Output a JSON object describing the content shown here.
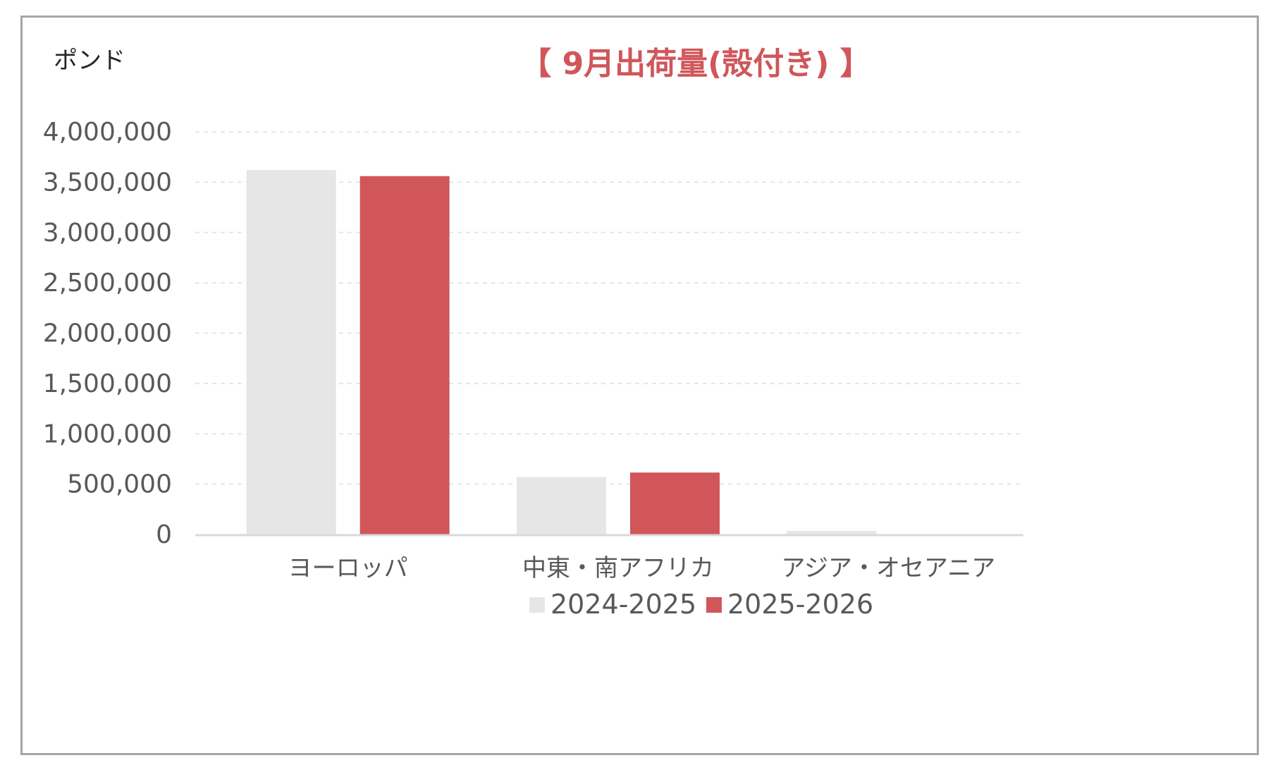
{
  "chart_data": {
    "type": "bar",
    "title": "【 9月出荷量(殻付き) 】",
    "unit_label": "ポンド",
    "categories": [
      "ヨーロッパ",
      "中東・南アフリカ",
      "アジア・オセアニア"
    ],
    "series": [
      {
        "name": "2024-2025",
        "color": "#e6e6e6",
        "values": [
          3620000,
          570000,
          35000
        ]
      },
      {
        "name": "2025-2026",
        "color": "#d0565a",
        "values": [
          3560000,
          615000,
          0
        ]
      }
    ],
    "ylim": [
      0,
      4000000
    ],
    "yticks": [
      0,
      500000,
      1000000,
      1500000,
      2000000,
      2500000,
      3000000,
      3500000,
      4000000
    ],
    "ytick_labels": [
      "0",
      "500,000",
      "1,000,000",
      "1,500,000",
      "2,000,000",
      "2,500,000",
      "3,000,000",
      "3,500,000",
      "4,000,000"
    ],
    "grid": true,
    "legend_position": "bottom",
    "title_color": "#d0565a"
  }
}
